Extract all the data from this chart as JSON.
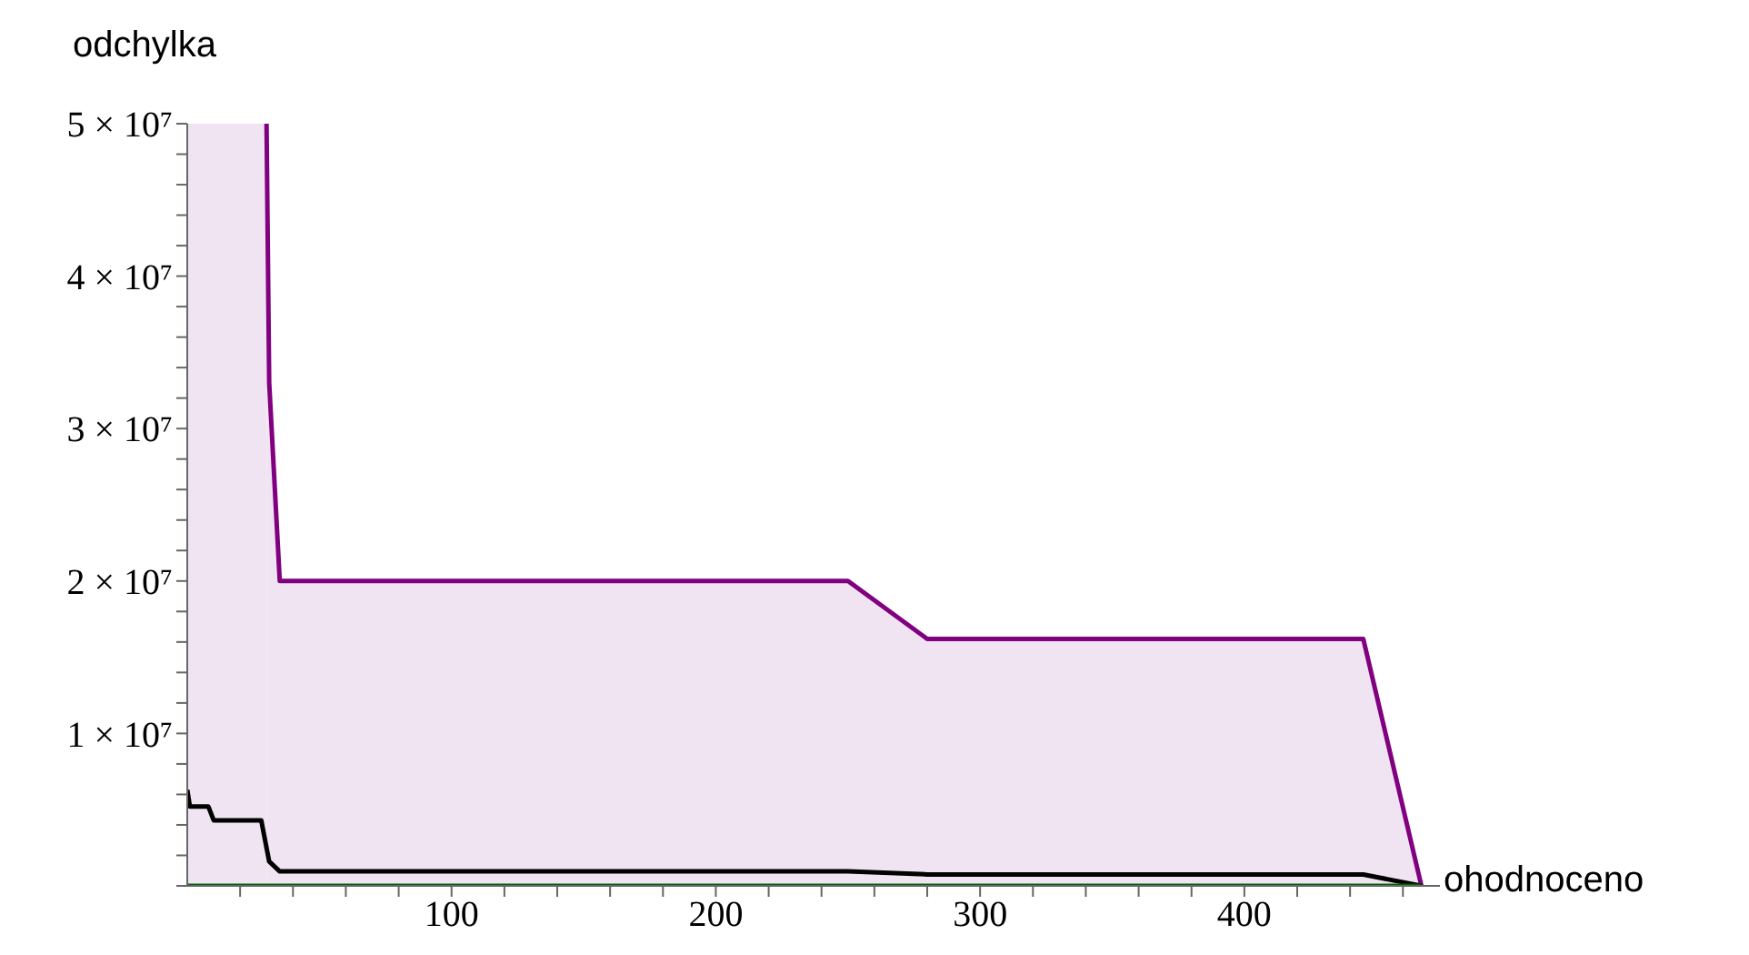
{
  "chart_data": {
    "type": "line",
    "xlabel": "ohodnoceno",
    "ylabel": "odchylka",
    "xlim": [
      0,
      474
    ],
    "ylim": [
      0,
      50000000
    ],
    "xticks": [
      {
        "value": 20,
        "label": null
      },
      {
        "value": 40,
        "label": null
      },
      {
        "value": 60,
        "label": null
      },
      {
        "value": 80,
        "label": null
      },
      100,
      {
        "value": 120,
        "label": null
      },
      {
        "value": 140,
        "label": null
      },
      {
        "value": 160,
        "label": null
      },
      {
        "value": 180,
        "label": null
      },
      200,
      {
        "value": 220,
        "label": null
      },
      {
        "value": 240,
        "label": null
      },
      {
        "value": 260,
        "label": null
      },
      {
        "value": 280,
        "label": null
      },
      300,
      {
        "value": 320,
        "label": null
      },
      {
        "value": 340,
        "label": null
      },
      {
        "value": 360,
        "label": null
      },
      {
        "value": 380,
        "label": null
      },
      400,
      {
        "value": 420,
        "label": null
      },
      {
        "value": 440,
        "label": null
      },
      {
        "value": 460,
        "label": null
      }
    ],
    "yticks": [
      {
        "value": 0,
        "label": null
      },
      {
        "value": 2000000,
        "label": null
      },
      {
        "value": 4000000,
        "label": null
      },
      {
        "value": 6000000,
        "label": null
      },
      {
        "value": 8000000,
        "label": null
      },
      {
        "value": 10000000,
        "label": "1 × 10⁷"
      },
      {
        "value": 12000000,
        "label": null
      },
      {
        "value": 14000000,
        "label": null
      },
      {
        "value": 16000000,
        "label": null
      },
      {
        "value": 18000000,
        "label": null
      },
      {
        "value": 20000000,
        "label": "2 × 10⁷"
      },
      {
        "value": 22000000,
        "label": null
      },
      {
        "value": 24000000,
        "label": null
      },
      {
        "value": 26000000,
        "label": null
      },
      {
        "value": 28000000,
        "label": null
      },
      {
        "value": 30000000,
        "label": "3 × 10⁷"
      },
      {
        "value": 32000000,
        "label": null
      },
      {
        "value": 34000000,
        "label": null
      },
      {
        "value": 36000000,
        "label": null
      },
      {
        "value": 38000000,
        "label": null
      },
      {
        "value": 40000000,
        "label": "4 × 10⁷"
      },
      {
        "value": 42000000,
        "label": null
      },
      {
        "value": 44000000,
        "label": null
      },
      {
        "value": 46000000,
        "label": null
      },
      {
        "value": 48000000,
        "label": null
      },
      {
        "value": 50000000,
        "label": "5 × 10⁷"
      }
    ],
    "bands": [
      {
        "axis": "x",
        "from": 0,
        "to": 30,
        "color": "#f0e4f2"
      }
    ],
    "series": [
      {
        "type": "area",
        "color": "#800080",
        "x": [
          30,
          31,
          35,
          250,
          280,
          445,
          467
        ],
        "values": [
          50000000,
          33000000,
          20000000,
          20000000,
          16200000,
          16200000,
          0
        ]
      },
      {
        "color": "#000000",
        "x": [
          0,
          1,
          8,
          10,
          28,
          31,
          35,
          250,
          280,
          445,
          467
        ],
        "values": [
          6300000,
          5200000,
          5200000,
          4300000,
          4300000,
          1600000,
          950000,
          950000,
          750000,
          750000,
          0
        ]
      },
      {
        "color": "#006400",
        "x": [
          0,
          467
        ],
        "values": [
          0,
          0
        ]
      }
    ]
  }
}
